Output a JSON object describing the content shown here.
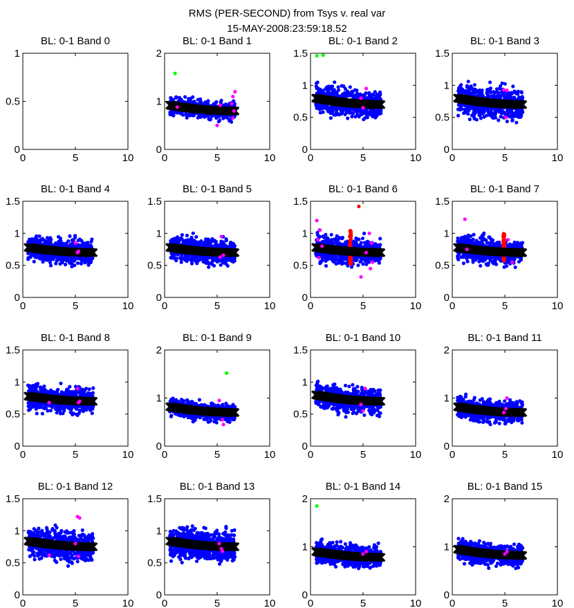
{
  "figure": {
    "title": "RMS (PER-SECOND) from Tsys v. real var",
    "subtitle": "15-MAY-2008:23:59:18.52"
  },
  "colors": {
    "scatter": "#0000ff",
    "fit": "#000000",
    "flag_magenta": "#ff00ff",
    "flag_red": "#ff0000",
    "flag_green": "#00ff00"
  },
  "chart_data": [
    {
      "type": "scatter",
      "title": "BL: 0-1 Band 0",
      "xlim": [
        0,
        10
      ],
      "ylim": [
        0,
        1
      ],
      "xticks": [
        0,
        5,
        10
      ],
      "yticks": [
        0,
        0.5,
        1
      ],
      "ytick_labels": [
        "0",
        "0.5",
        "1"
      ],
      "n_points": 0,
      "x_range": [
        0.5,
        6.7
      ],
      "y_range": [
        0,
        0
      ],
      "fit_y": [
        0,
        0
      ],
      "flags_magenta": [],
      "flags_green": [],
      "red_bands": []
    },
    {
      "type": "scatter",
      "title": "BL: 0-1 Band 1",
      "xlim": [
        0,
        10
      ],
      "ylim": [
        0,
        2
      ],
      "xticks": [
        0,
        5,
        10
      ],
      "yticks": [
        0,
        1,
        2
      ],
      "ytick_labels": [
        "0",
        "1",
        "2"
      ],
      "n_points": 520,
      "x_range": [
        0.5,
        6.7
      ],
      "y_range": [
        0.55,
        1.3
      ],
      "fit_y": [
        0.92,
        0.8
      ],
      "flags_magenta": [
        [
          1.2,
          0.88
        ],
        [
          5.0,
          0.5
        ],
        [
          5.3,
          0.92
        ],
        [
          6.4,
          0.95
        ],
        [
          6.5,
          1.1
        ],
        [
          6.6,
          0.8
        ],
        [
          6.5,
          0.65
        ],
        [
          6.7,
          1.2
        ]
      ],
      "flags_green": [
        [
          1.0,
          1.58
        ]
      ],
      "red_bands": []
    },
    {
      "type": "scatter",
      "title": "BL: 0-1 Band 2",
      "xlim": [
        0,
        10
      ],
      "ylim": [
        0,
        1.5
      ],
      "xticks": [
        0,
        5,
        10
      ],
      "yticks": [
        0,
        0.5,
        1,
        1.5
      ],
      "ytick_labels": [
        "0",
        "0.5",
        "1",
        "1.5"
      ],
      "n_points": 650,
      "x_range": [
        0.5,
        6.7
      ],
      "y_range": [
        0.45,
        1.3
      ],
      "fit_y": [
        0.8,
        0.7
      ],
      "flags_magenta": [
        [
          5.0,
          0.65
        ],
        [
          5.3,
          0.95
        ],
        [
          4.8,
          0.8
        ]
      ],
      "flags_green": [
        [
          0.6,
          1.46
        ],
        [
          1.2,
          1.47
        ]
      ],
      "red_bands": []
    },
    {
      "type": "scatter",
      "title": "BL: 0-1 Band 3",
      "xlim": [
        0,
        10
      ],
      "ylim": [
        0,
        1.5
      ],
      "xticks": [
        0,
        5,
        10
      ],
      "yticks": [
        0,
        0.5,
        1,
        1.5
      ],
      "ytick_labels": [
        "0",
        "0.5",
        "1",
        "1.5"
      ],
      "n_points": 650,
      "x_range": [
        0.5,
        6.7
      ],
      "y_range": [
        0.35,
        1.3
      ],
      "fit_y": [
        0.8,
        0.7
      ],
      "flags_magenta": [
        [
          4.9,
          0.93
        ],
        [
          5.2,
          0.92
        ],
        [
          5.1,
          0.5
        ]
      ],
      "flags_green": [],
      "red_bands": []
    },
    {
      "type": "scatter",
      "title": "BL: 0-1 Band 4",
      "xlim": [
        0,
        10
      ],
      "ylim": [
        0,
        1.5
      ],
      "xticks": [
        0,
        5,
        10
      ],
      "yticks": [
        0,
        0.5,
        1,
        1.5
      ],
      "ytick_labels": [
        "0",
        "0.5",
        "1",
        "1.5"
      ],
      "n_points": 650,
      "x_range": [
        0.5,
        6.7
      ],
      "y_range": [
        0.4,
        1.15
      ],
      "fit_y": [
        0.78,
        0.7
      ],
      "flags_magenta": [
        [
          5.0,
          0.85
        ],
        [
          5.3,
          0.72
        ],
        [
          5.2,
          0.7
        ]
      ],
      "flags_green": [],
      "red_bands": []
    },
    {
      "type": "scatter",
      "title": "BL: 0-1 Band 5",
      "xlim": [
        0,
        10
      ],
      "ylim": [
        0,
        1.5
      ],
      "xticks": [
        0,
        5,
        10
      ],
      "yticks": [
        0,
        0.5,
        1,
        1.5
      ],
      "ytick_labels": [
        "0",
        "0.5",
        "1",
        "1.5"
      ],
      "n_points": 650,
      "x_range": [
        0.5,
        6.7
      ],
      "y_range": [
        0.4,
        1.15
      ],
      "fit_y": [
        0.78,
        0.7
      ],
      "flags_magenta": [
        [
          5.3,
          0.63
        ],
        [
          5.6,
          0.66
        ],
        [
          5.4,
          0.95
        ]
      ],
      "flags_green": [],
      "red_bands": []
    },
    {
      "type": "scatter",
      "title": "BL: 0-1 Band 6",
      "xlim": [
        0,
        10
      ],
      "ylim": [
        0,
        1.5
      ],
      "xticks": [
        0,
        5,
        10
      ],
      "yticks": [
        0,
        0.5,
        1,
        1.5
      ],
      "ytick_labels": [
        "0",
        "0.5",
        "1",
        "1.5"
      ],
      "n_points": 650,
      "x_range": [
        0.5,
        6.7
      ],
      "y_range": [
        0.4,
        1.2
      ],
      "fit_y": [
        0.78,
        0.7
      ],
      "flags_magenta": [
        [
          0.6,
          1.2
        ],
        [
          0.9,
          1.05
        ],
        [
          0.7,
          0.9
        ],
        [
          1.1,
          0.8
        ],
        [
          0.8,
          0.62
        ],
        [
          5.6,
          1.0
        ],
        [
          5.8,
          0.85
        ],
        [
          5.3,
          0.7
        ],
        [
          5.9,
          0.55
        ],
        [
          5.7,
          0.45
        ],
        [
          4.8,
          0.32
        ]
      ],
      "flags_green": [],
      "red_bands": [
        {
          "x": 3.8,
          "ymin": 0.52,
          "ymax": 1.05
        },
        {
          "x": 4.6,
          "y_outlier": 1.42
        }
      ]
    },
    {
      "type": "scatter",
      "title": "BL: 0-1 Band 7",
      "xlim": [
        0,
        10
      ],
      "ylim": [
        0,
        1.5
      ],
      "xticks": [
        0,
        5,
        10
      ],
      "yticks": [
        0,
        0.5,
        1,
        1.5
      ],
      "ytick_labels": [
        "0",
        "0.5",
        "1",
        "1.5"
      ],
      "n_points": 650,
      "x_range": [
        0.5,
        6.7
      ],
      "y_range": [
        0.4,
        1.2
      ],
      "fit_y": [
        0.78,
        0.7
      ],
      "flags_magenta": [
        [
          1.2,
          1.22
        ],
        [
          1.4,
          0.75
        ],
        [
          5.3,
          0.9
        ],
        [
          5.7,
          0.55
        ]
      ],
      "flags_green": [],
      "red_bands": [
        {
          "x": 4.9,
          "ymin": 0.55,
          "ymax": 1.0
        }
      ]
    },
    {
      "type": "scatter",
      "title": "BL: 0-1 Band 8",
      "xlim": [
        0,
        10
      ],
      "ylim": [
        0,
        1.5
      ],
      "xticks": [
        0,
        5,
        10
      ],
      "yticks": [
        0,
        0.5,
        1,
        1.5
      ],
      "ytick_labels": [
        "0",
        "0.5",
        "1",
        "1.5"
      ],
      "n_points": 650,
      "x_range": [
        0.5,
        6.7
      ],
      "y_range": [
        0.4,
        1.2
      ],
      "fit_y": [
        0.78,
        0.7
      ],
      "flags_magenta": [
        [
          5.2,
          0.9
        ],
        [
          5.3,
          0.68
        ],
        [
          2.5,
          0.68
        ],
        [
          5.4,
          0.7
        ]
      ],
      "flags_green": [],
      "red_bands": []
    },
    {
      "type": "scatter",
      "title": "BL: 0-1 Band 9",
      "xlim": [
        0,
        10
      ],
      "ylim": [
        0,
        2
      ],
      "xticks": [
        0,
        5,
        10
      ],
      "yticks": [
        0,
        1,
        2
      ],
      "ytick_labels": [
        "0",
        "1",
        "2"
      ],
      "n_points": 650,
      "x_range": [
        0.5,
        6.7
      ],
      "y_range": [
        0.45,
        1.15
      ],
      "fit_y": [
        0.82,
        0.7
      ],
      "flags_magenta": [
        [
          5.5,
          0.55
        ],
        [
          5.6,
          0.45
        ],
        [
          5.2,
          0.95
        ]
      ],
      "flags_green": [
        [
          5.9,
          1.52
        ]
      ],
      "red_bands": []
    },
    {
      "type": "scatter",
      "title": "BL: 0-1 Band 10",
      "xlim": [
        0,
        10
      ],
      "ylim": [
        0,
        1.5
      ],
      "xticks": [
        0,
        5,
        10
      ],
      "yticks": [
        0,
        0.5,
        1,
        1.5
      ],
      "ytick_labels": [
        "0",
        "0.5",
        "1",
        "1.5"
      ],
      "n_points": 650,
      "x_range": [
        0.5,
        6.7
      ],
      "y_range": [
        0.4,
        1.25
      ],
      "fit_y": [
        0.8,
        0.7
      ],
      "flags_magenta": [
        [
          5.2,
          0.9
        ],
        [
          5.0,
          0.55
        ],
        [
          4.8,
          0.65
        ]
      ],
      "flags_green": [],
      "red_bands": []
    },
    {
      "type": "scatter",
      "title": "BL: 0-1 Band 11",
      "xlim": [
        0,
        10
      ],
      "ylim": [
        0,
        2
      ],
      "xticks": [
        0,
        5,
        10
      ],
      "yticks": [
        0,
        1,
        2
      ],
      "ytick_labels": [
        "0",
        "1",
        "2"
      ],
      "n_points": 650,
      "x_range": [
        0.5,
        6.7
      ],
      "y_range": [
        0.45,
        1.35
      ],
      "fit_y": [
        0.82,
        0.7
      ],
      "flags_magenta": [
        [
          5.2,
          1.0
        ],
        [
          5.1,
          0.78
        ],
        [
          4.9,
          0.7
        ]
      ],
      "flags_green": [],
      "red_bands": []
    },
    {
      "type": "scatter",
      "title": "BL: 0-1 Band 12",
      "xlim": [
        0,
        10
      ],
      "ylim": [
        0,
        1.5
      ],
      "xticks": [
        0,
        5,
        10
      ],
      "yticks": [
        0,
        0.5,
        1,
        1.5
      ],
      "ytick_labels": [
        "0",
        "0.5",
        "1",
        "1.5"
      ],
      "n_points": 700,
      "x_range": [
        0.5,
        6.7
      ],
      "y_range": [
        0.45,
        1.4
      ],
      "fit_y": [
        0.84,
        0.75
      ],
      "flags_magenta": [
        [
          5.2,
          1.22
        ],
        [
          5.4,
          1.2
        ],
        [
          5.0,
          0.8
        ],
        [
          5.3,
          0.6
        ],
        [
          2.5,
          0.62
        ]
      ],
      "flags_green": [],
      "red_bands": []
    },
    {
      "type": "scatter",
      "title": "BL: 0-1 Band 13",
      "xlim": [
        0,
        10
      ],
      "ylim": [
        0,
        1.5
      ],
      "xticks": [
        0,
        5,
        10
      ],
      "yticks": [
        0,
        0.5,
        1,
        1.5
      ],
      "ytick_labels": [
        "0",
        "0.5",
        "1",
        "1.5"
      ],
      "n_points": 700,
      "x_range": [
        0.5,
        6.7
      ],
      "y_range": [
        0.45,
        1.4
      ],
      "fit_y": [
        0.84,
        0.75
      ],
      "flags_magenta": [
        [
          5.4,
          0.72
        ],
        [
          5.2,
          0.8
        ],
        [
          5.5,
          0.68
        ]
      ],
      "flags_green": [],
      "red_bands": []
    },
    {
      "type": "scatter",
      "title": "BL: 0-1 Band 14",
      "xlim": [
        0,
        10
      ],
      "ylim": [
        0,
        2
      ],
      "xticks": [
        0,
        5,
        10
      ],
      "yticks": [
        0,
        1,
        2
      ],
      "ytick_labels": [
        "0",
        "1",
        "2"
      ],
      "n_points": 700,
      "x_range": [
        0.5,
        6.7
      ],
      "y_range": [
        0.55,
        1.4
      ],
      "fit_y": [
        0.9,
        0.78
      ],
      "flags_magenta": [
        [
          5.0,
          0.85
        ],
        [
          5.3,
          0.9
        ]
      ],
      "flags_green": [
        [
          0.6,
          1.85
        ]
      ],
      "red_bands": []
    },
    {
      "type": "scatter",
      "title": "BL: 0-1 Band 15",
      "xlim": [
        0,
        10
      ],
      "ylim": [
        0,
        2
      ],
      "xticks": [
        0,
        5,
        10
      ],
      "yticks": [
        0,
        1,
        2
      ],
      "ytick_labels": [
        "0",
        "1",
        "2"
      ],
      "n_points": 700,
      "x_range": [
        0.5,
        6.7
      ],
      "y_range": [
        0.55,
        1.45
      ],
      "fit_y": [
        0.95,
        0.82
      ],
      "flags_magenta": [
        [
          5.0,
          0.85
        ],
        [
          5.2,
          0.9
        ]
      ],
      "flags_green": [],
      "red_bands": []
    }
  ]
}
